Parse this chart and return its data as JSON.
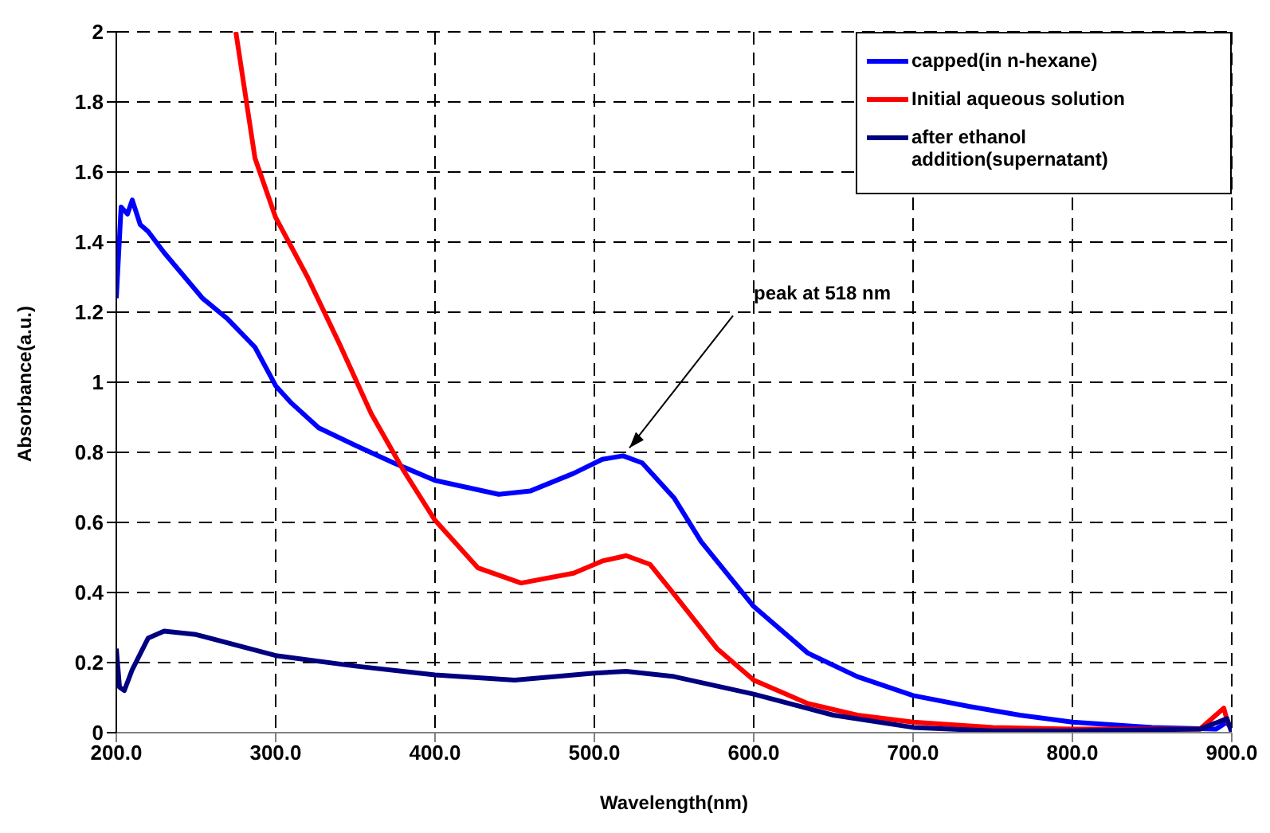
{
  "chart_data": {
    "type": "line",
    "xlabel": "Wavelength(nm)",
    "ylabel": "Absorbance(a.u.)",
    "xlim": [
      200,
      900
    ],
    "xticks": [
      {
        "value": 200,
        "label": "200.0"
      },
      {
        "value": 300,
        "label": "300.0"
      },
      {
        "value": 400,
        "label": "400.0"
      },
      {
        "value": 500,
        "label": "500.0"
      },
      {
        "value": 600,
        "label": "600.0"
      },
      {
        "value": 700,
        "label": "700.0"
      },
      {
        "value": 800,
        "label": "800.0"
      },
      {
        "value": 900,
        "label": "900.0"
      }
    ],
    "ylim": [
      0,
      2
    ],
    "yticks": [
      0,
      0.2,
      0.4,
      0.6,
      0.8,
      1,
      1.2,
      1.4,
      1.6,
      1.8,
      2
    ],
    "grid": true,
    "legend": "top right",
    "marker": "none",
    "line_style": "solid",
    "annotations": [
      {
        "text": "peak at 518 nm",
        "x": 518,
        "y": 0.79
      }
    ],
    "series": [
      {
        "name": "capped(in n-hexane)",
        "color": "#0000ff",
        "x": [
          200,
          203,
          207,
          210,
          215,
          220,
          230,
          254,
          270,
          287,
          300,
          310,
          327,
          350,
          374,
          400,
          420,
          440,
          460,
          487,
          505,
          518,
          530,
          550,
          567,
          600,
          634,
          665,
          700,
          735,
          767,
          800,
          850,
          890,
          897,
          900
        ],
        "values": [
          1.24,
          1.5,
          1.48,
          1.52,
          1.45,
          1.43,
          1.37,
          1.24,
          1.18,
          1.1,
          0.99,
          0.94,
          0.87,
          0.82,
          0.77,
          0.72,
          0.7,
          0.68,
          0.69,
          0.74,
          0.78,
          0.79,
          0.77,
          0.67,
          0.545,
          0.36,
          0.227,
          0.16,
          0.106,
          0.075,
          0.05,
          0.03,
          0.015,
          0.01,
          0.03,
          0.01
        ]
      },
      {
        "name": "Initial aqueous solution",
        "color": "#ff0000",
        "x": [
          275,
          287,
          300,
          320,
          340,
          360,
          380,
          400,
          427,
          454,
          487,
          505,
          520,
          535,
          550,
          577,
          600,
          634,
          665,
          700,
          750,
          800,
          880,
          895,
          898
        ],
        "values": [
          2,
          1.64,
          1.47,
          1.3,
          1.11,
          0.91,
          0.75,
          0.606,
          0.47,
          0.427,
          0.455,
          0.49,
          0.505,
          0.48,
          0.395,
          0.24,
          0.15,
          0.083,
          0.05,
          0.03,
          0.015,
          0.01,
          0.01,
          0.07,
          0.02
        ]
      },
      {
        "name": "after ethanol addition(supernatant)",
        "color": "#000080",
        "x": [
          200,
          202,
          205,
          210,
          220,
          230,
          250,
          300,
          350,
          400,
          450,
          500,
          520,
          550,
          600,
          650,
          700,
          750,
          800,
          880,
          897,
          900
        ],
        "values": [
          0.24,
          0.13,
          0.12,
          0.18,
          0.27,
          0.29,
          0.28,
          0.22,
          0.19,
          0.165,
          0.15,
          0.17,
          0.175,
          0.16,
          0.11,
          0.05,
          0.015,
          0.005,
          0.005,
          0.01,
          0.04,
          0
        ]
      }
    ]
  }
}
